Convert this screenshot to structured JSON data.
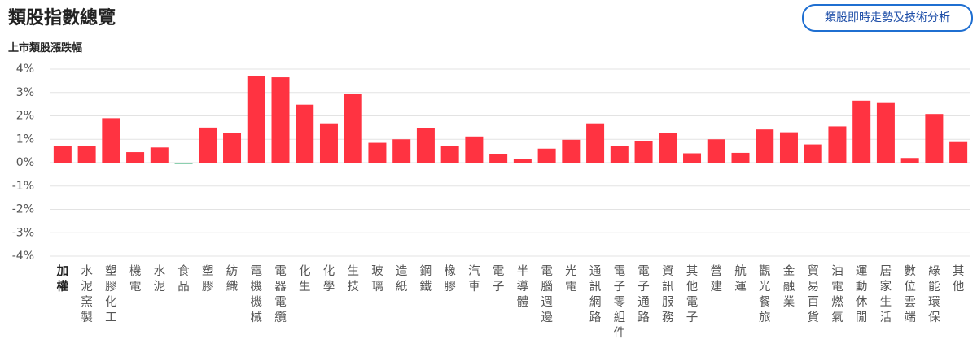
{
  "header": {
    "title": "類股指數總覽",
    "button": "類股即時走勢及技術分析"
  },
  "chart_data": {
    "type": "bar",
    "title": "上市類股漲跌幅",
    "categories": [
      "加權",
      "水泥窯製",
      "塑膠化工",
      "機電",
      "水泥",
      "食品",
      "塑膠",
      "紡織",
      "電機機械",
      "電器電纜",
      "化生",
      "化學",
      "生技",
      "玻璃",
      "造紙",
      "鋼鐵",
      "橡膠",
      "汽車",
      "電子",
      "半導體",
      "電腦週邊",
      "光電",
      "通訊網路",
      "電子零組件",
      "電子通路",
      "資訊服務",
      "其他電子",
      "營建",
      "航運",
      "觀光餐旅",
      "金融業",
      "貿易百貨",
      "油電燃氣",
      "運動休閒",
      "居家生活",
      "數位雲端",
      "綠能環保",
      "其他"
    ],
    "values": [
      0.7,
      0.7,
      1.9,
      0.45,
      0.65,
      -0.05,
      1.5,
      1.28,
      3.7,
      3.65,
      2.48,
      1.68,
      2.95,
      0.85,
      1.0,
      1.48,
      0.72,
      1.12,
      0.35,
      0.15,
      0.6,
      0.98,
      1.68,
      0.72,
      0.92,
      1.27,
      0.4,
      1.0,
      0.42,
      1.42,
      1.3,
      0.78,
      1.55,
      2.65,
      2.55,
      0.2,
      2.08,
      0.88
    ],
    "up_color": "#ff3341",
    "down_color": "#1aa260",
    "ylim": [
      -4,
      4
    ],
    "yticks": [
      {
        "value": 4,
        "label": "4%"
      },
      {
        "value": 3,
        "label": "3%"
      },
      {
        "value": 2,
        "label": "2%"
      },
      {
        "value": 1,
        "label": "1%"
      },
      {
        "value": 0,
        "label": "0%"
      },
      {
        "value": -1,
        "label": "-1%"
      },
      {
        "value": -2,
        "label": "-2%"
      },
      {
        "value": -3,
        "label": "-3%"
      },
      {
        "value": -4,
        "label": "-4%"
      }
    ],
    "grid": true
  }
}
